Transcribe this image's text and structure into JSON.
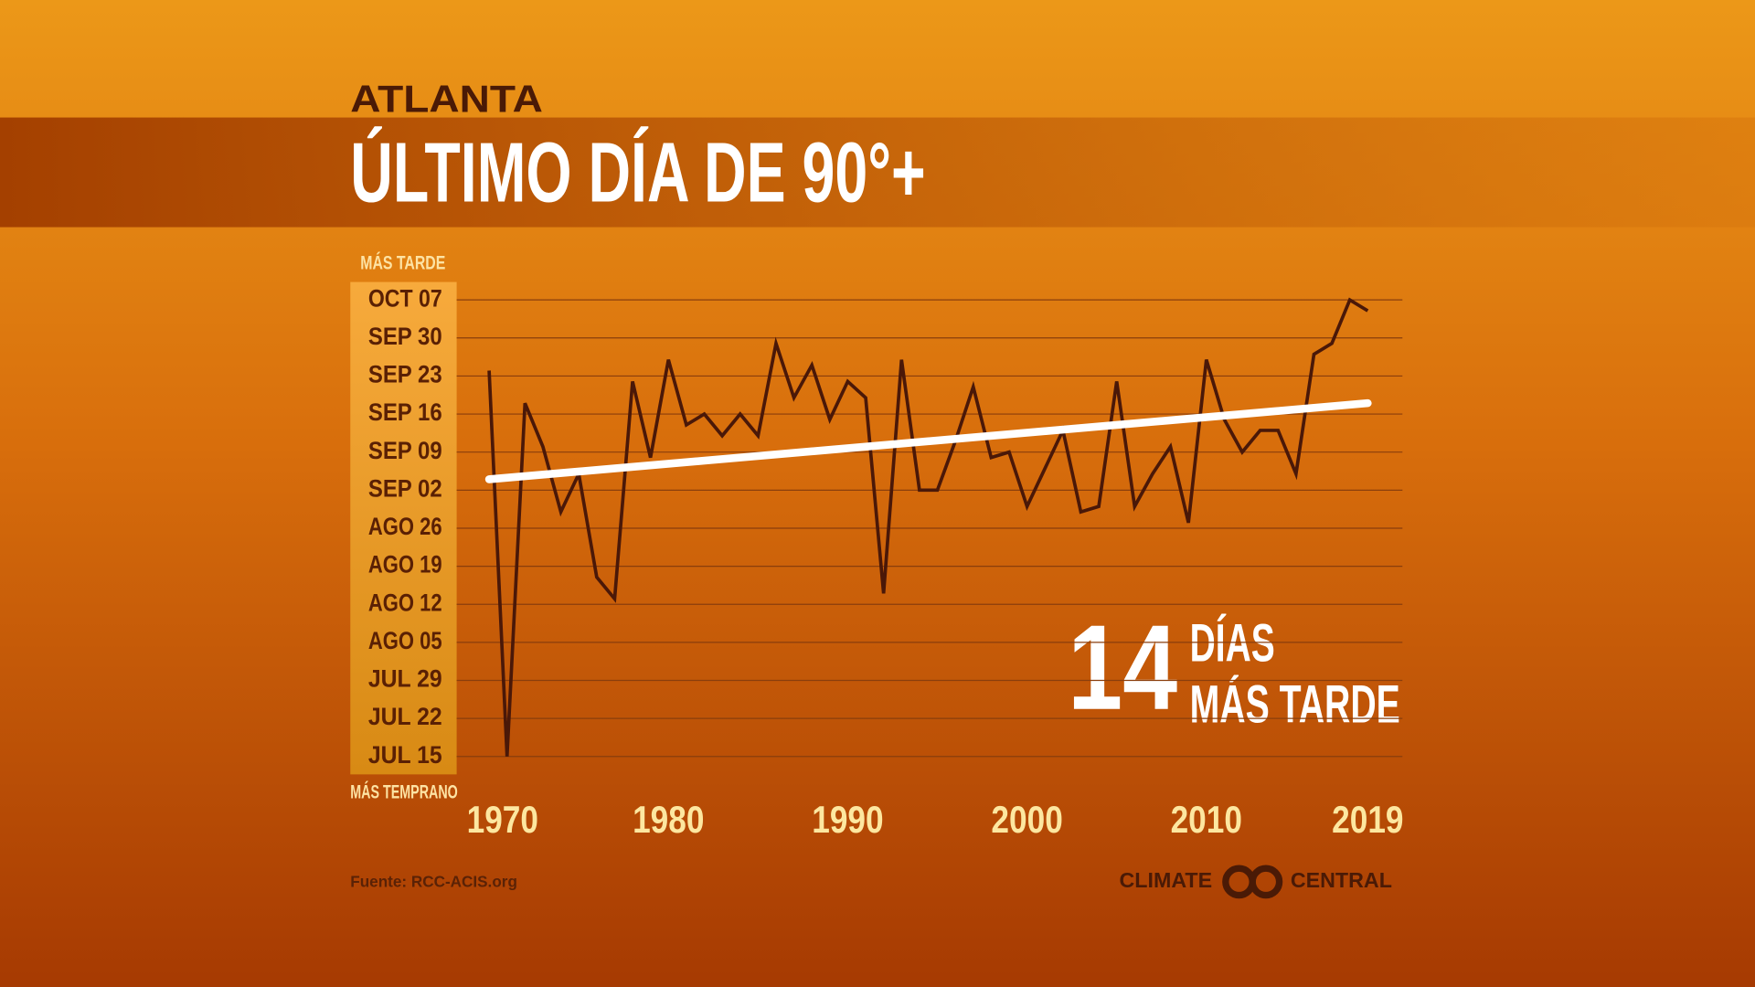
{
  "chart_data": {
    "type": "line",
    "header": "ATLANTA",
    "title": "ÚLTIMO DÍA DE 90°+",
    "x": [
      1970,
      1971,
      1972,
      1973,
      1974,
      1975,
      1976,
      1977,
      1978,
      1979,
      1980,
      1981,
      1982,
      1983,
      1984,
      1985,
      1986,
      1987,
      1988,
      1989,
      1990,
      1991,
      1992,
      1993,
      1994,
      1995,
      1996,
      1997,
      1998,
      1999,
      2000,
      2001,
      2002,
      2003,
      2004,
      2005,
      2006,
      2007,
      2008,
      2009,
      2010,
      2011,
      2012,
      2013,
      2014,
      2015,
      2016,
      2017,
      2018,
      2019
    ],
    "series": [
      {
        "color": "#4a1808",
        "values": [
          267,
          196,
          261,
          253,
          241,
          248,
          229,
          225,
          265,
          251,
          269,
          257,
          259,
          255,
          259,
          255,
          272,
          262,
          268,
          258,
          265,
          262,
          226,
          269,
          245,
          245,
          254,
          264,
          251,
          252,
          242,
          249,
          256,
          241,
          242,
          265,
          242,
          248,
          253,
          239,
          269,
          258,
          252,
          256,
          256,
          248,
          270,
          272,
          280,
          278
        ]
      }
    ],
    "trend": {
      "x": [
        1970,
        2019
      ],
      "values": [
        247,
        261
      ],
      "color": "#ffffff"
    },
    "xlim": [
      1970,
      2019
    ],
    "xticks": [
      1970,
      1980,
      1990,
      2000,
      2010,
      2019
    ],
    "ylim": [
      196,
      280
    ],
    "yticks": [
      {
        "value": 196,
        "label": "JUL 15"
      },
      {
        "value": 203,
        "label": "JUL 22"
      },
      {
        "value": 210,
        "label": "JUL 29"
      },
      {
        "value": 217,
        "label": "AGO 05"
      },
      {
        "value": 224,
        "label": "AGO 12"
      },
      {
        "value": 231,
        "label": "AGO 19"
      },
      {
        "value": 238,
        "label": "AGO 26"
      },
      {
        "value": 245,
        "label": "SEP 02"
      },
      {
        "value": 252,
        "label": "SEP 09"
      },
      {
        "value": 259,
        "label": "SEP 16"
      },
      {
        "value": 266,
        "label": "SEP 23"
      },
      {
        "value": 273,
        "label": "SEP 30"
      },
      {
        "value": 280,
        "label": "OCT 07"
      }
    ],
    "y_top_label": "MÁS TARDE",
    "y_bottom_label": "MÁS TEMPRANO",
    "grid": true,
    "annotation": {
      "value": 14,
      "lines": [
        "DÍAS",
        "MÁS TARDE"
      ]
    },
    "source": "Fuente: RCC-ACIS.org",
    "logo": {
      "left": "CLIMATE",
      "right": "CENTRAL"
    }
  }
}
